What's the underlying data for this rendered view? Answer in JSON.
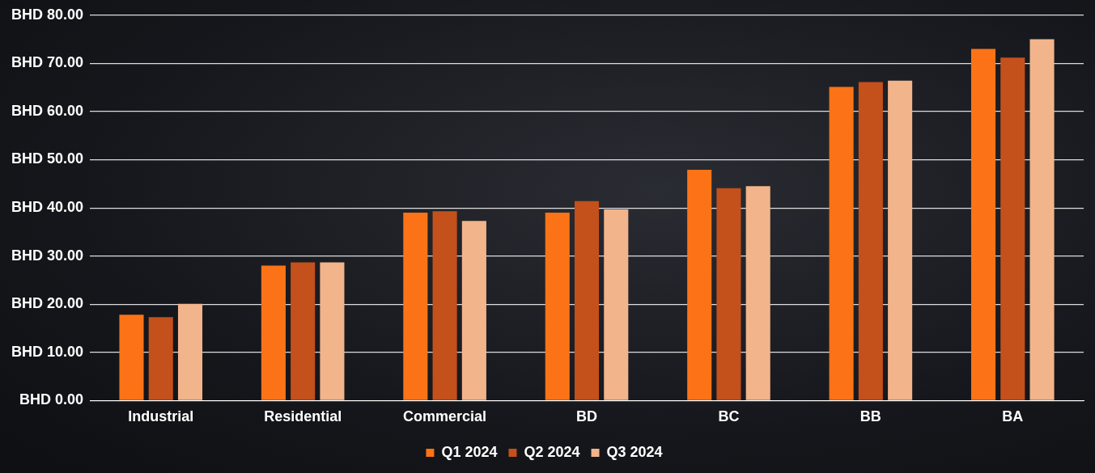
{
  "chart_data": {
    "type": "bar",
    "categories": [
      "Industrial",
      "Residential",
      "Commercial",
      "BD",
      "BC",
      "BB",
      "BA"
    ],
    "series": [
      {
        "name": "Q1 2024",
        "color": "#fb7316",
        "values": [
          17.8,
          28.0,
          39.0,
          39.0,
          47.9,
          65.1,
          73.0
        ]
      },
      {
        "name": "Q2 2024",
        "color": "#c4501b",
        "values": [
          17.3,
          28.7,
          39.3,
          41.4,
          44.1,
          66.1,
          71.2
        ]
      },
      {
        "name": "Q3 2024",
        "color": "#f2b48a",
        "values": [
          20.1,
          28.7,
          37.3,
          39.7,
          44.5,
          66.4,
          75.0
        ]
      }
    ],
    "ylim": [
      0,
      80
    ],
    "yticks": [
      {
        "value": 0,
        "label": "BHD 0.00"
      },
      {
        "value": 10,
        "label": "BHD 10.00"
      },
      {
        "value": 20,
        "label": "BHD 20.00"
      },
      {
        "value": 30,
        "label": "BHD 30.00"
      },
      {
        "value": 40,
        "label": "BHD 40.00"
      },
      {
        "value": 50,
        "label": "BHD 50.00"
      },
      {
        "value": 60,
        "label": "BHD 60.00"
      },
      {
        "value": 70,
        "label": "BHD 70.00"
      },
      {
        "value": 80,
        "label": "BHD 80.00"
      }
    ],
    "grid": true,
    "legend": "bottom"
  }
}
